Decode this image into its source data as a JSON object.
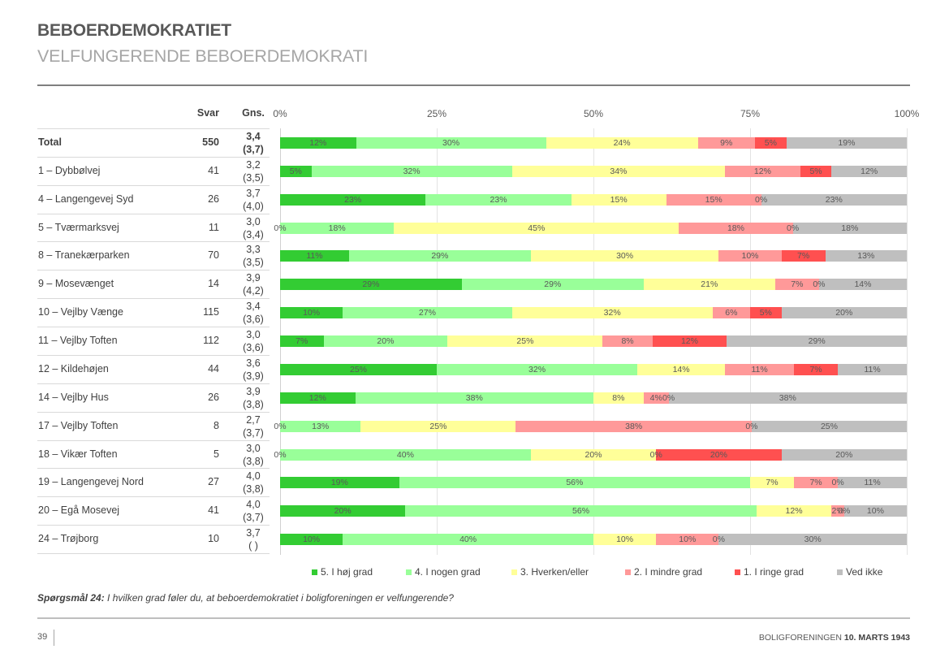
{
  "header": {
    "title": "BEBOERDEMOKRATIET",
    "subtitle": "VELFUNGERENDE BEBOERDEMOKRATI"
  },
  "table": {
    "col_svar": "Svar",
    "col_gns": "Gns."
  },
  "chart_data": {
    "type": "bar",
    "orientation": "horizontal-stacked-100",
    "title": "VELFUNGERENDE BEBOERDEMOKRATI",
    "xlabel": "",
    "ylabel": "",
    "xlim": [
      0,
      100
    ],
    "x_ticks": [
      "0%",
      "25%",
      "50%",
      "75%",
      "100%"
    ],
    "grid": true,
    "legend": "bottom",
    "categories": [
      "Total",
      "1 – Dybbølvej",
      "4 – Langengevej Syd",
      "5 – Tværmarksvej",
      "8 – Tranekærparken",
      "9 – Mosevænget",
      "10 – Vejlby Vænge",
      "11 – Vejlby Toften",
      "12 – Kildehøjen",
      "14 – Vejlby Hus",
      "17 – Vejlby Toften",
      "18 – Vikær Toften",
      "19 – Langengevej Nord",
      "20 – Egå Mosevej",
      "24 – Trøjborg"
    ],
    "svar": [
      550,
      41,
      26,
      11,
      70,
      14,
      115,
      112,
      44,
      26,
      8,
      5,
      27,
      41,
      10
    ],
    "gns": [
      "3,4",
      "3,2",
      "3,7",
      "3,0",
      "3,3",
      "3,9",
      "3,4",
      "3,0",
      "3,6",
      "3,9",
      "2,7",
      "3,0",
      "4,0",
      "4,0",
      "3,7"
    ],
    "gns_previous": [
      "(3,7)",
      "(3,5)",
      "(4,0)",
      "(3,4)",
      "(3,5)",
      "(4,2)",
      "(3,6)",
      "(3,6)",
      "(3,9)",
      "(3,8)",
      "(3,7)",
      "(3,8)",
      "(3,8)",
      "(3,7)",
      "(   )"
    ],
    "series": [
      {
        "name": "5. I høj grad",
        "color": "#33cc33",
        "values": [
          12,
          5,
          23,
          0,
          11,
          29,
          10,
          7,
          25,
          12,
          0,
          0,
          19,
          20,
          10
        ]
      },
      {
        "name": "4. I nogen grad",
        "color": "#99ff99",
        "values": [
          30,
          32,
          23,
          18,
          29,
          29,
          27,
          20,
          32,
          38,
          13,
          40,
          56,
          56,
          40
        ]
      },
      {
        "name": "3. Hverken/eller",
        "color": "#ffff99",
        "values": [
          24,
          34,
          15,
          45,
          30,
          21,
          32,
          25,
          14,
          8,
          25,
          20,
          7,
          12,
          10
        ]
      },
      {
        "name": "2. I mindre grad",
        "color": "#ff9999",
        "values": [
          9,
          12,
          15,
          18,
          10,
          7,
          6,
          8,
          11,
          4,
          38,
          0,
          7,
          2,
          10
        ]
      },
      {
        "name": "1. I ringe grad",
        "color": "#ff5050",
        "values": [
          5,
          5,
          0,
          0,
          7,
          0,
          5,
          12,
          7,
          0,
          0,
          20,
          0,
          0,
          0
        ]
      },
      {
        "name": "Ved ikke",
        "color": "#bfbfbf",
        "values": [
          19,
          12,
          23,
          18,
          13,
          14,
          20,
          29,
          11,
          38,
          25,
          20,
          11,
          10,
          30
        ]
      }
    ]
  },
  "question": {
    "label": "Spørgsmål 24:",
    "text": " I hvilken grad føler du, at beboerdemokratiet i boligforeningen er velfungerende?"
  },
  "footer": {
    "page_number": "39",
    "org": "BOLIGFORENINGEN ",
    "date": "10. MARTS 1943"
  }
}
